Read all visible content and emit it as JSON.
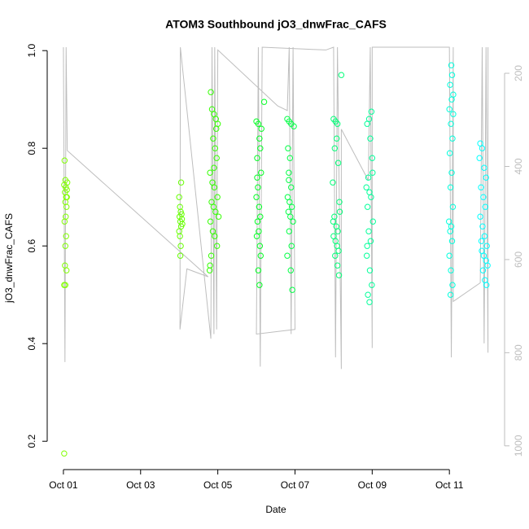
{
  "chart_data": {
    "type": "scatter",
    "title": "ATOM3 Southbound jO3_dnwFrac_CAFS",
    "xlabel": "Date",
    "ylabel": "jO3_dnwFrac_CAFS",
    "xlim": [
      0.58,
      12.43
    ],
    "xticks": [
      {
        "value": 1,
        "label": "Oct 01"
      },
      {
        "value": 3,
        "label": "Oct 03"
      },
      {
        "value": 5,
        "label": "Oct 05"
      },
      {
        "value": 7,
        "label": "Oct 07"
      },
      {
        "value": 9,
        "label": "Oct 09"
      },
      {
        "value": 11,
        "label": "Oct 11"
      }
    ],
    "ylim": [
      0.142,
      1.007
    ],
    "yticks": [
      0.2,
      0.4,
      0.6,
      0.8,
      {
        "value": 1,
        "label": "1.0"
      }
    ],
    "y2lim": [
      1051,
      144
    ],
    "y2ticks": [
      200,
      400,
      600,
      800,
      1000
    ],
    "y2color": "#bebebe",
    "series": [
      {
        "type": "line",
        "axis": "y2",
        "color": "#bebebe",
        "x": [
          1.0,
          1.04,
          1.07,
          1.1,
          4.75,
          4.2,
          4.02,
          4.03,
          4.82,
          4.85,
          4.9,
          4.92,
          4.97,
          5.0,
          6.55,
          6.8,
          6.85,
          6.9,
          6.95,
          7.0,
          6.0,
          6.05,
          6.1,
          6.15,
          7.8,
          8.0,
          8.05,
          8.1,
          8.2,
          8.2,
          8.9,
          8.95,
          9.0,
          9.0,
          11.0,
          11.05,
          11.1,
          11.1,
          11.8,
          11.85,
          11.9,
          11.95,
          12.0,
          12.0
        ],
        "values": [
          144,
          820,
          144,
          366,
          637,
          620,
          750,
          144,
          770,
          144,
          760,
          144,
          750,
          150,
          270,
          280,
          144,
          760,
          144,
          750,
          760,
          144,
          830,
          144,
          150,
          144,
          810,
          144,
          835,
          320,
          430,
          144,
          790,
          144,
          144,
          810,
          144,
          690,
          650,
          144,
          780,
          144,
          800,
          144
        ]
      },
      {
        "color": "#80ff00",
        "x": [
          1.03,
          1.05,
          1.06,
          1.04,
          1.07,
          1.05,
          1.08,
          1.02,
          1.09,
          1.06,
          1.03,
          1.07,
          1.05,
          1.04,
          1.08,
          1.02,
          1.05,
          1.02,
          1.1,
          1.09
        ],
        "values": [
          0.775,
          0.735,
          0.72,
          0.71,
          0.7,
          0.69,
          0.68,
          0.725,
          0.715,
          0.66,
          0.65,
          0.62,
          0.6,
          0.56,
          0.55,
          0.52,
          0.52,
          0.175,
          0.73,
          0.7
        ]
      },
      {
        "color": "#66ff00",
        "x": [
          4.05,
          4.0,
          4.02,
          4.04,
          4.06,
          4.01,
          4.03,
          4.05,
          4.0,
          4.02,
          4.04,
          4.03,
          4.07,
          4.08
        ],
        "values": [
          0.73,
          0.7,
          0.68,
          0.67,
          0.665,
          0.66,
          0.65,
          0.64,
          0.63,
          0.62,
          0.6,
          0.58,
          0.655,
          0.645
        ]
      },
      {
        "color": "#33ff00",
        "x": [
          4.82,
          4.85,
          4.9,
          4.95,
          5.0,
          4.88,
          4.93,
          4.97,
          4.8,
          4.86,
          4.91,
          4.99,
          4.84,
          4.89,
          4.94,
          5.02,
          4.81,
          4.87,
          4.92,
          4.98,
          4.83,
          4.8,
          4.79,
          4.96,
          4.9
        ],
        "values": [
          0.915,
          0.88,
          0.87,
          0.86,
          0.85,
          0.82,
          0.8,
          0.78,
          0.75,
          0.73,
          0.72,
          0.7,
          0.69,
          0.68,
          0.67,
          0.66,
          0.65,
          0.63,
          0.62,
          0.6,
          0.58,
          0.56,
          0.55,
          0.84,
          0.76
        ]
      },
      {
        "color": "#00ff22",
        "x": [
          6.2,
          6.0,
          6.05,
          6.08,
          6.1,
          6.02,
          6.12,
          6.04,
          6.0,
          6.07,
          6.1,
          6.03,
          6.06,
          6.01,
          6.09,
          6.11,
          6.05,
          6.08,
          6.13,
          6.02
        ],
        "values": [
          0.895,
          0.855,
          0.85,
          0.82,
          0.8,
          0.78,
          0.75,
          0.72,
          0.7,
          0.68,
          0.66,
          0.65,
          0.63,
          0.62,
          0.6,
          0.58,
          0.55,
          0.52,
          0.84,
          0.74
        ]
      },
      {
        "color": "#00ff44",
        "x": [
          6.8,
          6.85,
          6.9,
          6.82,
          6.87,
          6.84,
          6.9,
          6.81,
          6.86,
          6.92,
          6.83,
          6.88,
          6.95,
          6.85,
          6.91,
          6.8,
          6.89,
          6.93,
          6.97,
          6.84
        ],
        "values": [
          0.86,
          0.855,
          0.85,
          0.8,
          0.78,
          0.75,
          0.72,
          0.7,
          0.69,
          0.68,
          0.67,
          0.66,
          0.65,
          0.63,
          0.6,
          0.58,
          0.55,
          0.51,
          0.845,
          0.735
        ]
      },
      {
        "color": "#00ff77",
        "x": [
          8.2,
          8.0,
          8.05,
          8.1,
          8.08,
          8.03,
          8.12,
          7.98,
          8.15,
          8.02,
          8.07,
          8.11,
          8.0,
          8.05,
          8.09,
          8.13,
          8.04,
          8.1,
          8.14,
          7.99,
          8.16
        ],
        "values": [
          0.95,
          0.86,
          0.855,
          0.85,
          0.82,
          0.8,
          0.77,
          0.73,
          0.69,
          0.66,
          0.64,
          0.63,
          0.62,
          0.61,
          0.6,
          0.59,
          0.58,
          0.56,
          0.54,
          0.65,
          0.67
        ]
      },
      {
        "color": "#00ff99",
        "x": [
          8.98,
          8.92,
          8.87,
          8.95,
          9.0,
          8.9,
          8.85,
          8.93,
          8.97,
          8.88,
          9.02,
          8.91,
          8.96,
          8.86,
          8.94,
          8.99,
          8.89,
          8.93,
          9.01,
          8.87
        ],
        "values": [
          0.875,
          0.86,
          0.85,
          0.82,
          0.78,
          0.74,
          0.72,
          0.71,
          0.7,
          0.68,
          0.65,
          0.63,
          0.61,
          0.58,
          0.55,
          0.52,
          0.5,
          0.485,
          0.75,
          0.6
        ]
      },
      {
        "color": "#00ffdd",
        "x": [
          11.05,
          11.07,
          11.02,
          11.1,
          11.0,
          11.04,
          11.08,
          11.01,
          11.06,
          11.03,
          11.09,
          10.99,
          11.05,
          11.02,
          11.07,
          11.0,
          11.04,
          11.08,
          11.03,
          11.06,
          11.1
        ],
        "values": [
          0.97,
          0.95,
          0.93,
          0.91,
          0.88,
          0.85,
          0.82,
          0.79,
          0.75,
          0.72,
          0.68,
          0.65,
          0.64,
          0.63,
          0.61,
          0.58,
          0.55,
          0.52,
          0.5,
          0.9,
          0.87
        ]
      },
      {
        "color": "#00ffff",
        "x": [
          11.8,
          11.85,
          11.78,
          11.9,
          11.95,
          11.82,
          11.88,
          11.93,
          11.8,
          11.86,
          11.91,
          11.97,
          11.84,
          11.89,
          11.95,
          11.99,
          11.87,
          11.92,
          11.96,
          11.83
        ],
        "values": [
          0.81,
          0.8,
          0.78,
          0.76,
          0.74,
          0.72,
          0.7,
          0.68,
          0.66,
          0.64,
          0.62,
          0.6,
          0.59,
          0.58,
          0.57,
          0.56,
          0.55,
          0.53,
          0.52,
          0.61
        ]
      }
    ]
  }
}
